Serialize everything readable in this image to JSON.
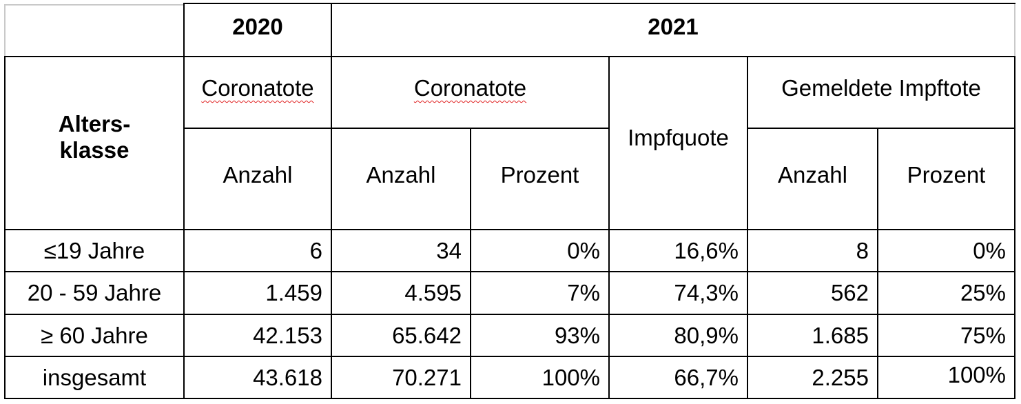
{
  "table": {
    "year_2020": "2020",
    "year_2021": "2021",
    "age_class_header": "Alters-\nklasse",
    "coronatote_2020": "Coronatote",
    "coronatote_2021": "Coronatote",
    "impfquote": "Impfquote",
    "gemeldete_impftote": "Gemeldete Impftote",
    "sub_anzahl_2020": "Anzahl",
    "sub_anzahl_2021": "Anzahl",
    "sub_prozent_2021": "Prozent",
    "sub_anzahl_impftote": "Anzahl",
    "sub_prozent_impftote": "Prozent",
    "rows": [
      {
        "label": "≤19 Jahre",
        "c2020": "6",
        "c2021": "34",
        "p2021": "0%",
        "quote": "16,6%",
        "impf_anzahl": "8",
        "impf_prozent": "0%"
      },
      {
        "label": "20 - 59 Jahre",
        "c2020": "1.459",
        "c2021": "4.595",
        "p2021": "7%",
        "quote": "74,3%",
        "impf_anzahl": "562",
        "impf_prozent": "25%"
      },
      {
        "label": "≥ 60 Jahre",
        "c2020": "42.153",
        "c2021": "65.642",
        "p2021": "93%",
        "quote": "80,9%",
        "impf_anzahl": "1.685",
        "impf_prozent": "75%"
      },
      {
        "label": "insgesamt",
        "c2020": "43.618",
        "c2021": "70.271",
        "p2021": "100%",
        "quote": "66,7%",
        "impf_anzahl": "2.255",
        "impf_prozent": "100%"
      }
    ]
  }
}
